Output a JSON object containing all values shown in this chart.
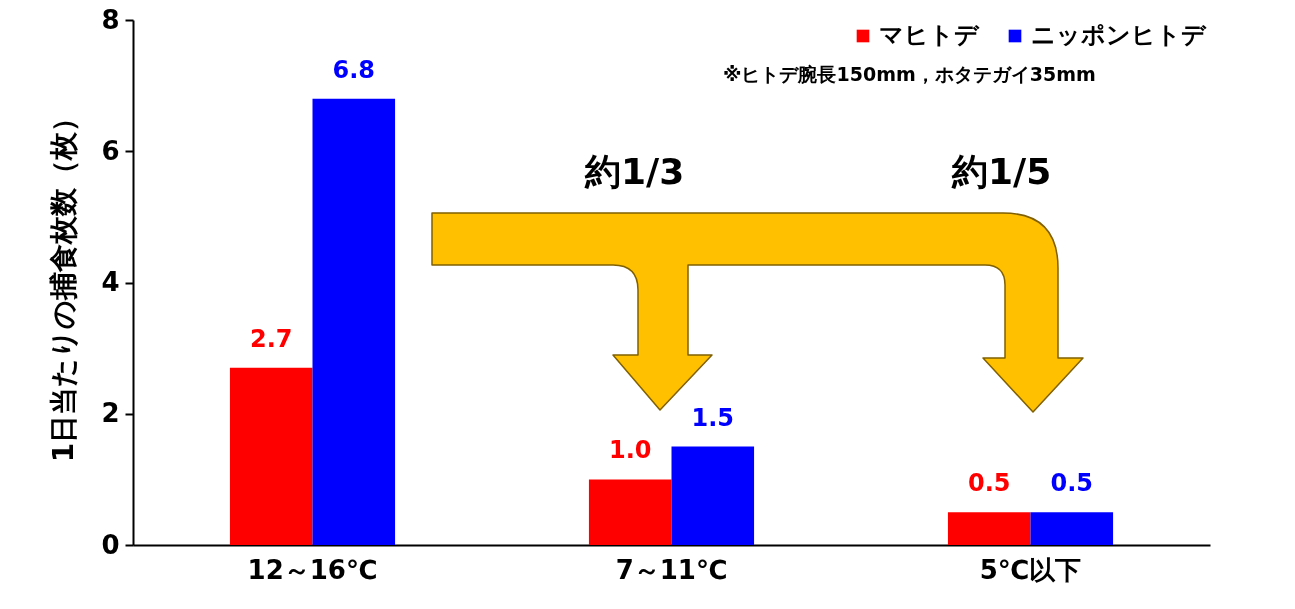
{
  "chart_data": {
    "type": "bar",
    "ylabel": "1日当たりの捕食枚数（枚）",
    "categories": [
      "12～16℃",
      "7～11℃",
      "5℃以下"
    ],
    "series": [
      {
        "name": "マヒトデ",
        "color": "#ff0000",
        "values": [
          2.7,
          1.0,
          0.5
        ],
        "value_labels": [
          "2.7",
          "1.0",
          "0.5"
        ]
      },
      {
        "name": "ニッポンヒトデ",
        "color": "#0000ff",
        "values": [
          6.8,
          1.5,
          0.5
        ],
        "value_labels": [
          "6.8",
          "1.5",
          "0.5"
        ]
      }
    ],
    "ylim": [
      0,
      8
    ],
    "yticks": [
      0,
      2,
      4,
      6,
      8
    ],
    "grid": false,
    "legend": "top right",
    "annotations": [
      "※ヒトデ腕長150mm，ホタテガイ35mm",
      "約1/3",
      "約1/5"
    ]
  }
}
